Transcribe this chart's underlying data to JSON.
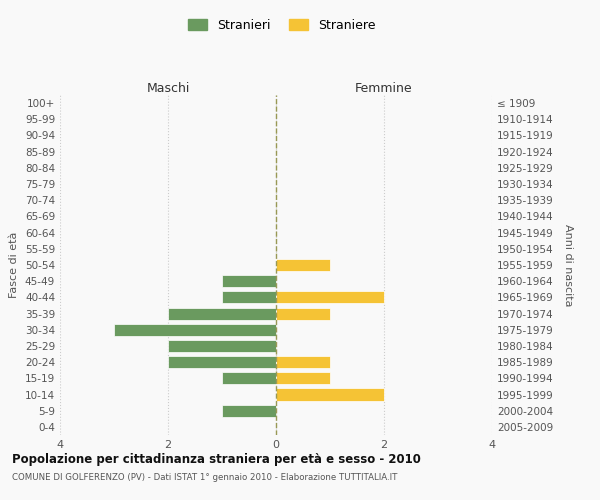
{
  "age_groups": [
    "100+",
    "95-99",
    "90-94",
    "85-89",
    "80-84",
    "75-79",
    "70-74",
    "65-69",
    "60-64",
    "55-59",
    "50-54",
    "45-49",
    "40-44",
    "35-39",
    "30-34",
    "25-29",
    "20-24",
    "15-19",
    "10-14",
    "5-9",
    "0-4"
  ],
  "birth_years": [
    "≤ 1909",
    "1910-1914",
    "1915-1919",
    "1920-1924",
    "1925-1929",
    "1930-1934",
    "1935-1939",
    "1940-1944",
    "1945-1949",
    "1950-1954",
    "1955-1959",
    "1960-1964",
    "1965-1969",
    "1970-1974",
    "1975-1979",
    "1980-1984",
    "1985-1989",
    "1990-1994",
    "1995-1999",
    "2000-2004",
    "2005-2009"
  ],
  "maschi": [
    0,
    0,
    0,
    0,
    0,
    0,
    0,
    0,
    0,
    0,
    0,
    1,
    1,
    2,
    3,
    2,
    2,
    1,
    0,
    1,
    0
  ],
  "femmine": [
    0,
    0,
    0,
    0,
    0,
    0,
    0,
    0,
    0,
    0,
    1,
    0,
    2,
    1,
    0,
    0,
    1,
    1,
    2,
    0,
    0
  ],
  "color_maschi": "#6a9a5f",
  "color_femmine": "#f5c335",
  "background_color": "#f9f9f9",
  "grid_color": "#cccccc",
  "title_main": "Popolazione per cittadinanza straniera per età e sesso - 2010",
  "title_sub": "COMUNE DI GOLFERENZO (PV) - Dati ISTAT 1° gennaio 2010 - Elaborazione TUTTITALIA.IT",
  "ylabel_left": "Fasce di età",
  "ylabel_right": "Anni di nascita",
  "legend_maschi": "Stranieri",
  "legend_femmine": "Straniere",
  "xlim": 4,
  "header_maschi": "Maschi",
  "header_femmine": "Femmine"
}
